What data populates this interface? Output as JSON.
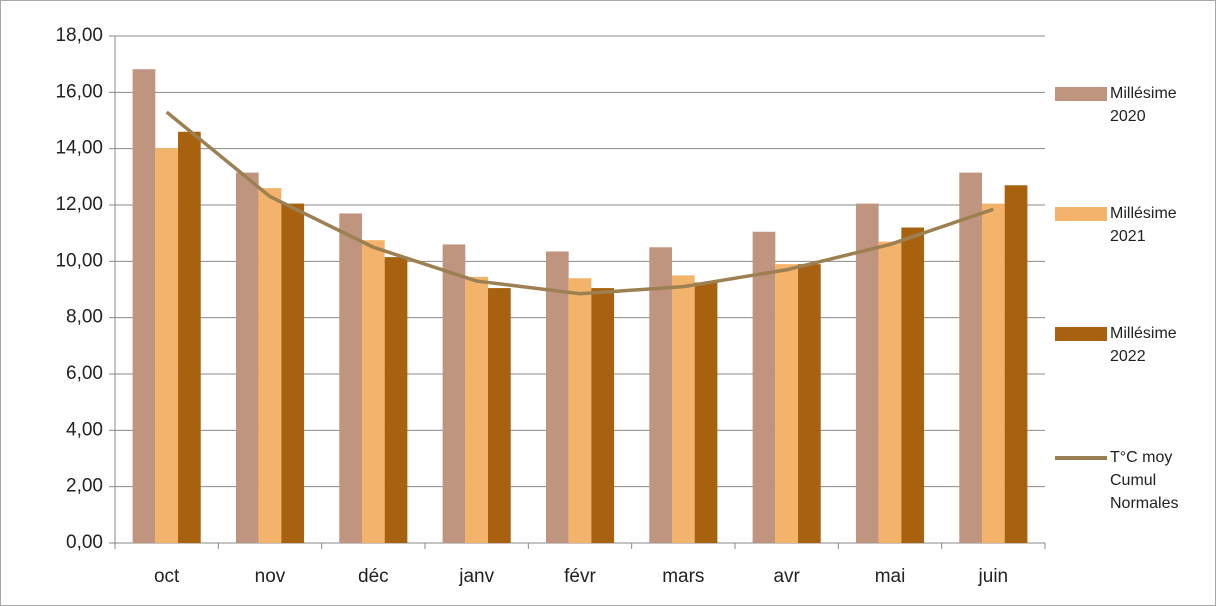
{
  "chart_data": {
    "type": "bar",
    "categories": [
      "oct",
      "nov",
      "déc",
      "janv",
      "févr",
      "mars",
      "avr",
      "mai",
      "juin"
    ],
    "series": [
      {
        "name": "Millésime 2020",
        "type": "bar",
        "color": "#c0957f",
        "values": [
          16.82,
          13.15,
          11.7,
          10.6,
          10.35,
          10.5,
          11.05,
          12.05,
          13.15
        ]
      },
      {
        "name": "Millésime 2021",
        "type": "bar",
        "color": "#f4b36b",
        "values": [
          14.02,
          12.6,
          10.75,
          9.45,
          9.4,
          9.5,
          9.9,
          10.7,
          12.05
        ]
      },
      {
        "name": "Millésime 2022",
        "type": "bar",
        "color": "#a8620f",
        "values": [
          14.6,
          12.05,
          10.15,
          9.05,
          9.05,
          9.25,
          9.9,
          11.2,
          12.7
        ]
      },
      {
        "name": "T°C moy Cumul Normales",
        "type": "line",
        "color": "#9c8052",
        "values": [
          15.3,
          12.3,
          10.5,
          9.3,
          8.85,
          9.1,
          9.7,
          10.6,
          11.85
        ]
      }
    ],
    "ylim": [
      0,
      18
    ],
    "yticks": [
      {
        "value": 0,
        "label": "0,00"
      },
      {
        "value": 2,
        "label": "2,00"
      },
      {
        "value": 4,
        "label": "4,00"
      },
      {
        "value": 6,
        "label": "6,00"
      },
      {
        "value": 8,
        "label": "8,00"
      },
      {
        "value": 10,
        "label": "10,00"
      },
      {
        "value": 12,
        "label": "12,00"
      },
      {
        "value": 14,
        "label": "14,00"
      },
      {
        "value": 16,
        "label": "16,00"
      },
      {
        "value": 18,
        "label": "18,00"
      }
    ],
    "grid": true
  }
}
